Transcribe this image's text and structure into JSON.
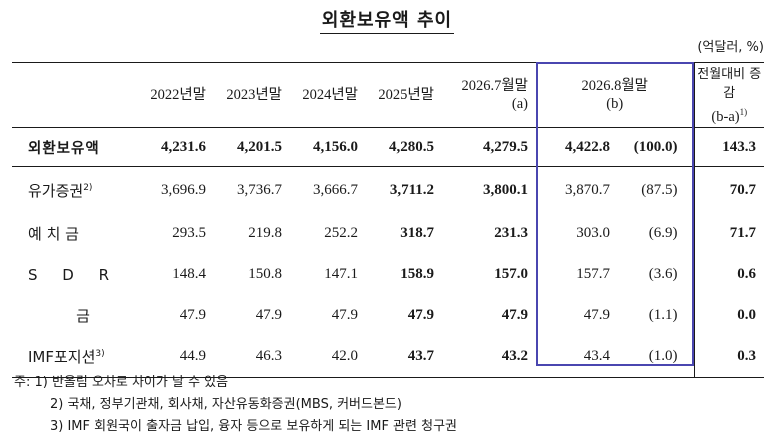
{
  "title": "외환보유액 추이",
  "unit": "(억달러, %)",
  "columns": {
    "c2022": "2022년말",
    "c2023": "2023년말",
    "c2024": "2024년말",
    "c2025": "2025년말",
    "jul_line1": "2026.7월말",
    "jul_line2": "(a)",
    "aug_line1": "2026.8월말",
    "aug_line2": "(b)",
    "chg_line1": "전월대비 증감",
    "chg_line2": "(b-a)",
    "chg_sup": "1)"
  },
  "rows": [
    {
      "label": "외환보유액",
      "sup": "",
      "v2022": "4,231.6",
      "v2023": "4,201.5",
      "v2024": "4,156.0",
      "v2025": "4,280.5",
      "jul": "4,279.5",
      "aug": "4,422.8",
      "share": "(100.0)",
      "change": "143.3"
    },
    {
      "label": "유가증권",
      "sup": "2)",
      "v2022": "3,696.9",
      "v2023": "3,736.7",
      "v2024": "3,666.7",
      "v2025": "3,711.2",
      "jul": "3,800.1",
      "aug": "3,870.7",
      "share": "(87.5)",
      "change": "70.7"
    },
    {
      "label": "예 치 금",
      "sup": "",
      "v2022": "293.5",
      "v2023": "219.8",
      "v2024": "252.2",
      "v2025": "318.7",
      "jul": "231.3",
      "aug": "303.0",
      "share": "(6.9)",
      "change": "71.7"
    },
    {
      "label": "S D R",
      "sup": "",
      "v2022": "148.4",
      "v2023": "150.8",
      "v2024": "147.1",
      "v2025": "158.9",
      "jul": "157.0",
      "aug": "157.7",
      "share": "(3.6)",
      "change": "0.6"
    },
    {
      "label": "금",
      "sup": "",
      "v2022": "47.9",
      "v2023": "47.9",
      "v2024": "47.9",
      "v2025": "47.9",
      "jul": "47.9",
      "aug": "47.9",
      "share": "(1.1)",
      "change": "0.0"
    },
    {
      "label": "IMF포지션",
      "sup": "3)",
      "v2022": "44.9",
      "v2023": "46.3",
      "v2024": "42.0",
      "v2025": "43.7",
      "jul": "43.2",
      "aug": "43.4",
      "share": "(1.0)",
      "change": "0.3"
    }
  ],
  "notes": {
    "n1": "주: 1) 반올림 오차로 차이가 날 수 있음",
    "n2": "2) 국채, 정부기관채, 회사채, 자산유동화증권(MBS, 커버드본드)",
    "n3": "3) IMF 회원국이 출자금 납입, 융자 등으로 보유하게 되는 IMF 관련 청구권"
  }
}
